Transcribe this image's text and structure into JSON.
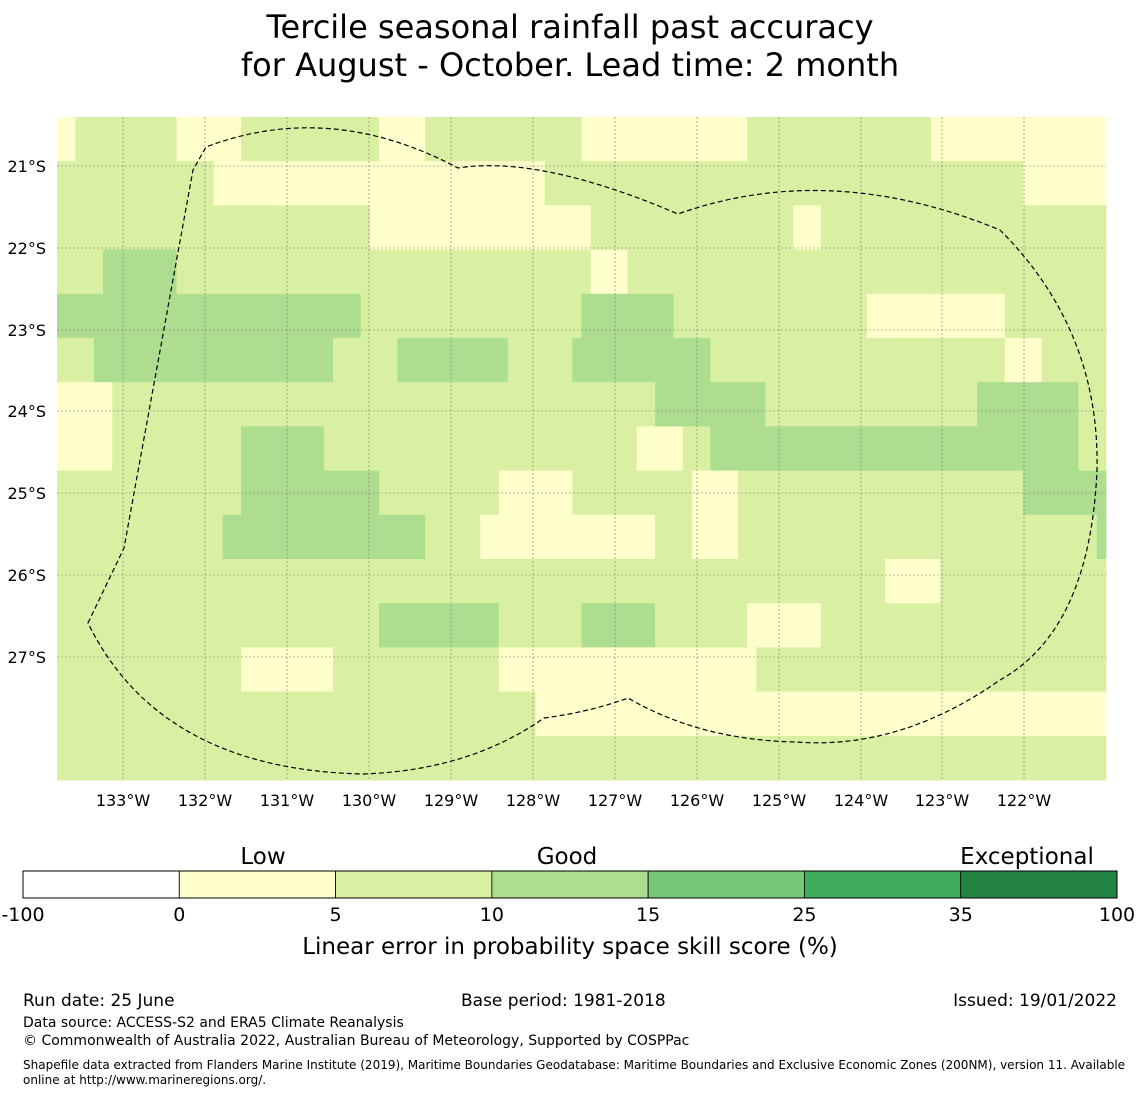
{
  "title_line1": "Tercile seasonal rainfall past accuracy",
  "title_line2": "for August - October. Lead time: 2 month",
  "map": {
    "lon_labels": [
      "133°W",
      "132°W",
      "131°W",
      "130°W",
      "129°W",
      "128°W",
      "127°W",
      "126°W",
      "125°W",
      "124°W",
      "123°W",
      "122°W"
    ],
    "lat_labels": [
      "21°S",
      "22°S",
      "23°S",
      "24°S",
      "25°S",
      "26°S",
      "27°S"
    ],
    "grid_rows": [
      "112222222222211111112222222222222221111122222222222222222111111111111111111222222222222222222221111111111111111111",
      "222222222222222221111111111111111111111111111111111112222222222222222222222222222222222222222222222222222111111111",
      "222222222222222222222222222222222211111111111111111111111122222222222222222222221112222222222222222222222222222222",
      "222223333333322222222222222222222222222222222222222222222211112222222222222222222222222222222222222222222222222222",
      "333333333333333333333333333333333222222222222222222222222333333333322222222222222222222211111111111111122222222222",
      "222233333333333333333333333333222222233333333333322222223333333333333332222222222222222222222222222222211112222222",
      "111111222222222222222222222222222222222222222222222222222222222223333333333332222222222222222222222233333333333222",
      "111111222222222222223333333332222222222222222222222222222222222111112223333333333333333333333333333333333333333222",
      "222222222222222222223333333333333332222222222222111111112222222222222111112222222222222222222222222222222333333333",
      "222222222222222222333333333333333333333322222211111111111111111112222111112222222222222222222222222222222222222223",
      "222222222222222222222222222222222222222222222222222222222222222222222222222222222222222222111111222222222222222222",
      "222222222222222222222222222222222223333333333333222222222333333332222222222111111112222222222222222222222222222222",
      "222222222222222222221111111111222222222222222222111111111111111111111111111122222222222222222222222222222222222222",
      "222222222222222222222222222222222222222222222222222211111111111111111111111111111111111111111111111111111111111111",
      "222222222222222222222222222222222222222222222222222222222222222222222222222222222222222222222222222222222222222222"
    ],
    "legend_colors": [
      "#ffffff",
      "#ffffcc",
      "#d9f0a3",
      "#addd8e",
      "#78c679",
      "#41ab5d",
      "#238443"
    ]
  },
  "colorbar": {
    "category_labels": [
      "Low",
      "Good",
      "Exceptional"
    ],
    "tick_labels": [
      "-100",
      "0",
      "5",
      "10",
      "15",
      "25",
      "35",
      "100"
    ],
    "xlabel": "Linear error in probability space skill score (%)"
  },
  "footer": {
    "run_date": "Run date: 25 June",
    "base_period": "Base period: 1981-2018",
    "issued": "Issued: 19/01/2022",
    "data_source": "Data source: ACCESS-S2 and ERA5 Climate Reanalysis",
    "copyright": "© Commonwealth of Australia 2022, Australian Bureau of Meteorology, Supported by COSPPac",
    "shapefile_line1": "Shapefile data extracted from Flanders Marine Institute (2019), Maritime Boundaries Geodatabase: Maritime Boundaries and Exclusive Economic Zones (200NM), version 11. Available",
    "shapefile_line2": "online at http://www.marineregions.org/."
  }
}
